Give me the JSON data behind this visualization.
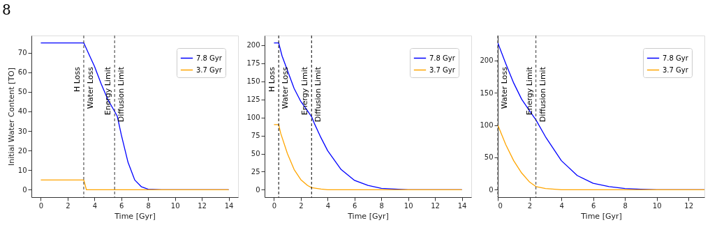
{
  "chart_data": [
    {
      "type": "line",
      "annotations": [
        "8",
        {
          "text": "Water Loss",
          "x": 3.2
        },
        {
          "text": "Diffusion Limit",
          "x": 5.5
        }
      ],
      "xlabel": "Time [Gyr]",
      "ylabel": "Initial Water Content [TO]",
      "xlim": [
        -0.7,
        14.7
      ],
      "xticks": [
        0,
        2,
        4,
        6,
        8,
        10,
        12,
        14
      ],
      "ylim": [
        -3.75,
        78.75
      ],
      "yticks": [
        0,
        10,
        20,
        30,
        40,
        50,
        60,
        70
      ],
      "legend": "top right",
      "series": [
        {
          "name": "7.8 Gyr",
          "color": "#0000ff",
          "x": [
            0,
            3.2,
            3.6,
            4,
            4.5,
            5,
            5.5,
            5.7,
            6,
            6.5,
            7,
            7.5,
            8,
            9,
            14
          ],
          "values": [
            75,
            75,
            69,
            63,
            54,
            46,
            40,
            37.5,
            28,
            14,
            5,
            1.5,
            0.3,
            0,
            0
          ]
        },
        {
          "name": "3.7 Gyr",
          "color": "#ffa500",
          "x": [
            0,
            3.2,
            3.4,
            14
          ],
          "values": [
            5,
            5,
            0,
            0
          ]
        }
      ],
      "ref_lines": [
        {
          "axis": "x",
          "value": 3.2,
          "label": "H Loss",
          "color": "#333333",
          "line_style": "dashed"
        },
        {
          "axis": "x",
          "value": 5.5,
          "label": "Energy Limit",
          "color": "#333333",
          "line_style": "dashed"
        }
      ]
    },
    {
      "type": "line",
      "annotations": [
        {
          "text": "Water Loss",
          "x": 0.35
        },
        {
          "text": "Diffusion Limit",
          "x": 2.8
        }
      ],
      "xlabel": "Time [Gyr]",
      "xlim": [
        -0.7,
        14.7
      ],
      "xticks": [
        0,
        2,
        4,
        6,
        8,
        10,
        12,
        14
      ],
      "ylim": [
        -10.15,
        213.15
      ],
      "yticks": [
        0,
        25,
        50,
        75,
        100,
        125,
        150,
        175,
        200
      ],
      "legend": "top right",
      "series": [
        {
          "name": "7.8 Gyr",
          "color": "#0000ff",
          "x": [
            0,
            0.35,
            0.6,
            1,
            1.5,
            2,
            2.5,
            2.8,
            3,
            3.5,
            4,
            5,
            6,
            7,
            8,
            9,
            10,
            14
          ],
          "values": [
            203,
            203,
            185,
            165,
            140,
            122,
            109,
            101,
            92,
            72,
            54,
            28,
            13,
            6,
            2,
            1,
            0,
            0
          ]
        },
        {
          "name": "3.7 Gyr",
          "color": "#ffa500",
          "x": [
            0,
            0.35,
            0.5,
            1,
            1.5,
            2,
            2.5,
            2.8,
            3.5,
            4,
            5,
            14
          ],
          "values": [
            90,
            90,
            78,
            50,
            28,
            14,
            6,
            3,
            1,
            0,
            0,
            0
          ]
        }
      ],
      "ref_lines": [
        {
          "axis": "x",
          "value": 0.35,
          "label": "H Loss",
          "color": "#000000",
          "line_style": "dashed"
        },
        {
          "axis": "x",
          "value": 2.8,
          "label": "Energy Limit",
          "color": "#000000",
          "line_style": "dashed"
        }
      ]
    },
    {
      "type": "line",
      "annotations": [
        {
          "text": "Diffusion Limit",
          "x": 2.4
        }
      ],
      "xlabel": "Time [Gyr]",
      "xlim": [
        0,
        13
      ],
      "xticks": [
        0,
        2,
        4,
        6,
        8,
        10,
        12
      ],
      "ylim": [
        -11.35,
        238.35
      ],
      "yticks": [
        0,
        50,
        100,
        150,
        200
      ],
      "legend": "top right",
      "series": [
        {
          "name": "7.8 Gyr",
          "color": "#0000ff",
          "x": [
            0,
            0.5,
            1,
            1.5,
            2,
            2.4,
            3,
            4,
            5,
            6,
            7,
            8,
            9,
            10,
            13
          ],
          "values": [
            227,
            195,
            165,
            140,
            122,
            108,
            82,
            45,
            22,
            10,
            5,
            2,
            1,
            0,
            0
          ]
        },
        {
          "name": "3.7 Gyr",
          "color": "#ffa500",
          "x": [
            0,
            0.5,
            1,
            1.5,
            2,
            2.4,
            3,
            4,
            5,
            13
          ],
          "values": [
            100,
            70,
            45,
            26,
            12,
            5,
            2,
            0,
            0,
            0
          ]
        }
      ],
      "ref_lines": [
        {
          "axis": "x",
          "value": 0,
          "label": "Water Loss",
          "color": "#333333",
          "line_style": "dashed"
        },
        {
          "axis": "x",
          "value": 2.4,
          "label": "Energy Limit",
          "color": "#333333",
          "line_style": "dashed"
        }
      ]
    }
  ]
}
